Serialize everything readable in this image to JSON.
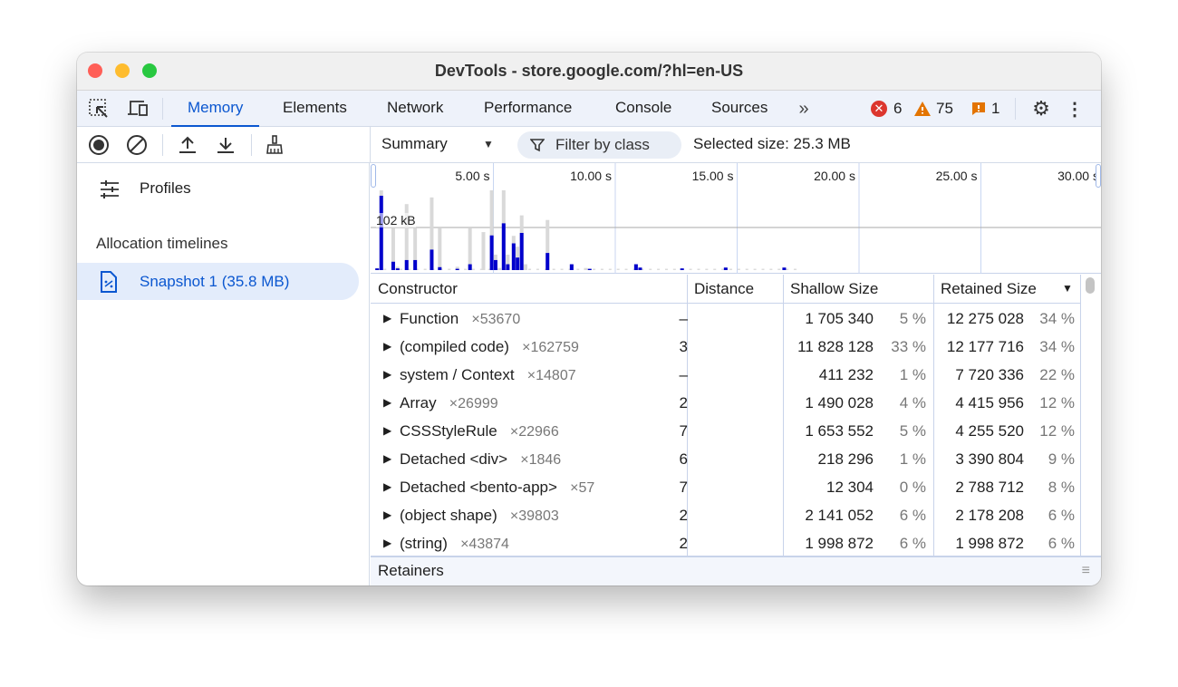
{
  "window": {
    "title": "DevTools - store.google.com/?hl=en-US"
  },
  "tabs": [
    {
      "label": "Memory",
      "active": true
    },
    {
      "label": "Elements"
    },
    {
      "label": "Network"
    },
    {
      "label": "Performance"
    },
    {
      "label": "Console"
    },
    {
      "label": "Sources"
    }
  ],
  "more_tabs_icon": "chevron-double-right",
  "status": {
    "errors": "6",
    "warnings": "75",
    "issues": "1"
  },
  "colors": {
    "accent": "#0b57d0",
    "error": "#dc362e",
    "warning": "#e37400",
    "bar_live": "#0000cc",
    "bar_total": "#d9d9d9"
  },
  "sidebar": {
    "profiles_label": "Profiles",
    "section_title": "Allocation timelines",
    "snapshot": "Snapshot 1 (35.8 MB)"
  },
  "toolbar": {
    "view_select": "Summary",
    "filter_label": "Filter by class",
    "selected_size": "Selected size: 25.3 MB"
  },
  "timeline": {
    "tick_labels": [
      "5.00 s",
      "10.00 s",
      "15.00 s",
      "20.00 s",
      "25.00 s",
      "30.00 s"
    ],
    "scale_label": "102 kB",
    "bars_kB": [
      [
        0.23,
        5,
        4
      ],
      [
        0.4,
        191,
        178
      ],
      [
        0.89,
        100,
        20
      ],
      [
        1.07,
        8,
        4
      ],
      [
        1.44,
        158,
        24
      ],
      [
        1.79,
        100,
        24
      ],
      [
        2.47,
        174,
        49
      ],
      [
        2.8,
        100,
        7
      ],
      [
        3.52,
        8,
        3
      ],
      [
        4.04,
        100,
        14
      ],
      [
        4.59,
        91,
        0
      ],
      [
        4.93,
        191,
        83
      ],
      [
        5.09,
        37,
        24
      ],
      [
        5.25,
        5,
        0
      ],
      [
        5.42,
        191,
        112
      ],
      [
        5.59,
        37,
        14
      ],
      [
        5.83,
        82,
        64
      ],
      [
        5.99,
        56,
        30
      ],
      [
        6.16,
        131,
        89
      ],
      [
        6.32,
        14,
        0
      ],
      [
        7.22,
        120,
        41
      ],
      [
        8.21,
        14,
        14
      ],
      [
        8.79,
        5,
        0
      ],
      [
        8.95,
        3,
        3
      ],
      [
        10.85,
        14,
        14
      ],
      [
        11.02,
        6,
        6
      ],
      [
        12.74,
        4,
        4
      ],
      [
        14.53,
        6,
        6
      ],
      [
        16.93,
        6,
        6
      ]
    ]
  },
  "table": {
    "headers": [
      "Constructor",
      "Distance",
      "Shallow Size",
      "Retained Size"
    ],
    "sort_icon": "triangle-down",
    "rows": [
      {
        "name": "Function",
        "count": "×53670",
        "distance": "–",
        "shallow": "1 705 340",
        "shallow_pct": "5 %",
        "retained": "12 275 028",
        "retained_pct": "34 %"
      },
      {
        "name": "(compiled code)",
        "count": "×162759",
        "distance": "3",
        "shallow": "11 828 128",
        "shallow_pct": "33 %",
        "retained": "12 177 716",
        "retained_pct": "34 %"
      },
      {
        "name": "system / Context",
        "count": "×14807",
        "distance": "–",
        "shallow": "411 232",
        "shallow_pct": "1 %",
        "retained": "7 720 336",
        "retained_pct": "22 %"
      },
      {
        "name": "Array",
        "count": "×26999",
        "distance": "2",
        "shallow": "1 490 028",
        "shallow_pct": "4 %",
        "retained": "4 415 956",
        "retained_pct": "12 %"
      },
      {
        "name": "CSSStyleRule",
        "count": "×22966",
        "distance": "7",
        "shallow": "1 653 552",
        "shallow_pct": "5 %",
        "retained": "4 255 520",
        "retained_pct": "12 %"
      },
      {
        "name": "Detached <div>",
        "count": "×1846",
        "distance": "6",
        "shallow": "218 296",
        "shallow_pct": "1 %",
        "retained": "3 390 804",
        "retained_pct": "9 %"
      },
      {
        "name": "Detached <bento-app>",
        "count": "×57",
        "distance": "7",
        "shallow": "12 304",
        "shallow_pct": "0 %",
        "retained": "2 788 712",
        "retained_pct": "8 %"
      },
      {
        "name": "(object shape)",
        "count": "×39803",
        "distance": "2",
        "shallow": "2 141 052",
        "shallow_pct": "6 %",
        "retained": "2 178 208",
        "retained_pct": "6 %"
      },
      {
        "name": "(string)",
        "count": "×43874",
        "distance": "2",
        "shallow": "1 998 872",
        "shallow_pct": "6 %",
        "retained": "1 998 872",
        "retained_pct": "6 %"
      }
    ]
  },
  "retainers_label": "Retainers"
}
